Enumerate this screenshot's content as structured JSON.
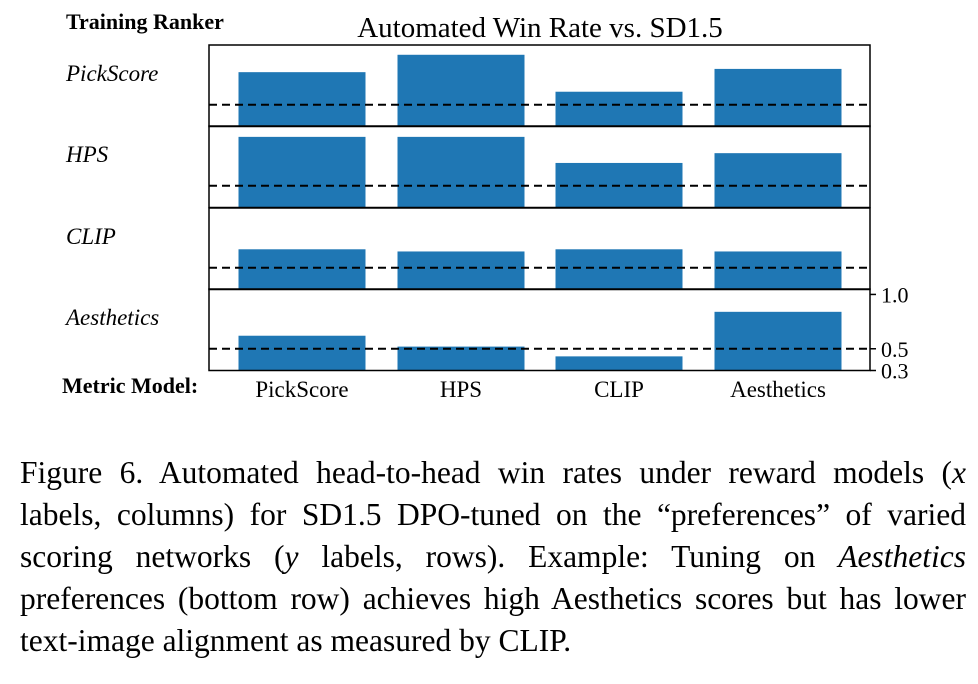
{
  "chart_data": {
    "type": "bar",
    "title": "Automated Win Rate vs. SD1.5",
    "row_header": "Training Ranker",
    "column_header": "Metric Model:",
    "categories": [
      "PickScore",
      "HPS",
      "CLIP",
      "Aesthetics"
    ],
    "rows": [
      {
        "label": "PickScore",
        "values": [
          0.8,
          0.96,
          0.62,
          0.83
        ]
      },
      {
        "label": "HPS",
        "values": [
          0.95,
          0.95,
          0.71,
          0.8
        ]
      },
      {
        "label": "CLIP",
        "values": [
          0.67,
          0.65,
          0.67,
          0.65
        ]
      },
      {
        "label": "Aesthetics",
        "values": [
          0.62,
          0.52,
          0.43,
          0.84
        ]
      }
    ],
    "reference_line": 0.5,
    "ylim": [
      0.3,
      1.05
    ],
    "yticks": [
      "1.0",
      "0.5",
      "0.3"
    ],
    "bar_color": "#1f77b4"
  },
  "caption": {
    "parts": [
      {
        "text": "Figure 6. Automated head-to-head win rates under reward models (",
        "italic": false
      },
      {
        "text": "x",
        "italic": true
      },
      {
        "text": " labels, columns) for SD1.5 DPO-tuned on the “preferences” of varied scoring networks (",
        "italic": false
      },
      {
        "text": "y",
        "italic": true
      },
      {
        "text": " labels, rows). Example: Tuning on ",
        "italic": false
      },
      {
        "text": "Aesthetics",
        "italic": true
      },
      {
        "text": " preferences (bottom row) achieves high Aesthetics scores but has lower text-image alignment as measured by CLIP.",
        "italic": false
      }
    ]
  }
}
